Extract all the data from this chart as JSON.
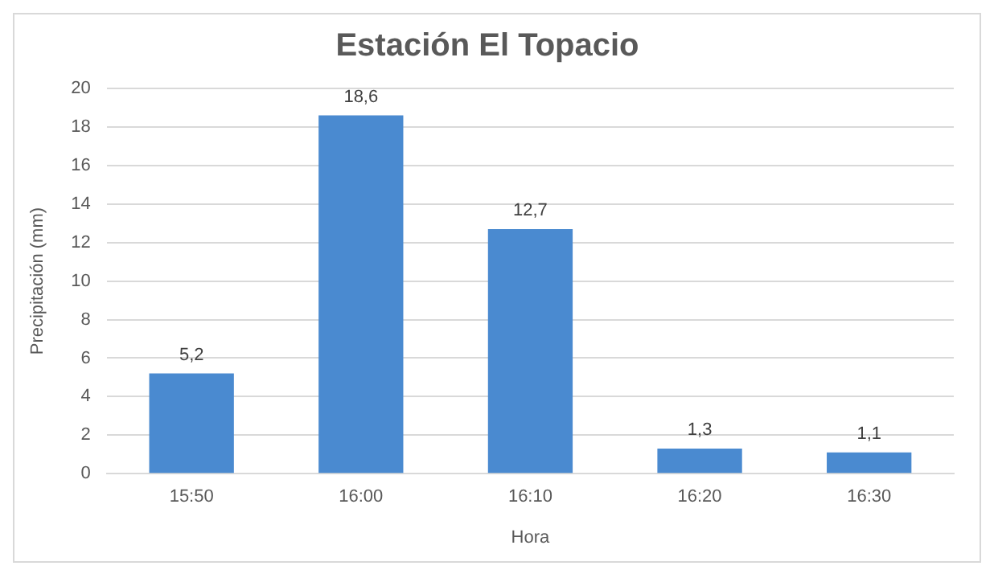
{
  "chart_data": {
    "type": "bar",
    "title": "Estación El Topacio",
    "xlabel": "Hora",
    "ylabel": "Precipitación (mm)",
    "categories": [
      "15:50",
      "16:00",
      "16:10",
      "16:20",
      "16:30"
    ],
    "values": [
      5.2,
      18.6,
      12.7,
      1.3,
      1.1
    ],
    "value_labels": [
      "5,2",
      "18,6",
      "12,7",
      "1,3",
      "1,1"
    ],
    "color": "#4a8ad0",
    "ylim": [
      0,
      20
    ],
    "yticks": [
      0,
      2,
      4,
      6,
      8,
      10,
      12,
      14,
      16,
      18,
      20
    ],
    "grid": "y"
  }
}
